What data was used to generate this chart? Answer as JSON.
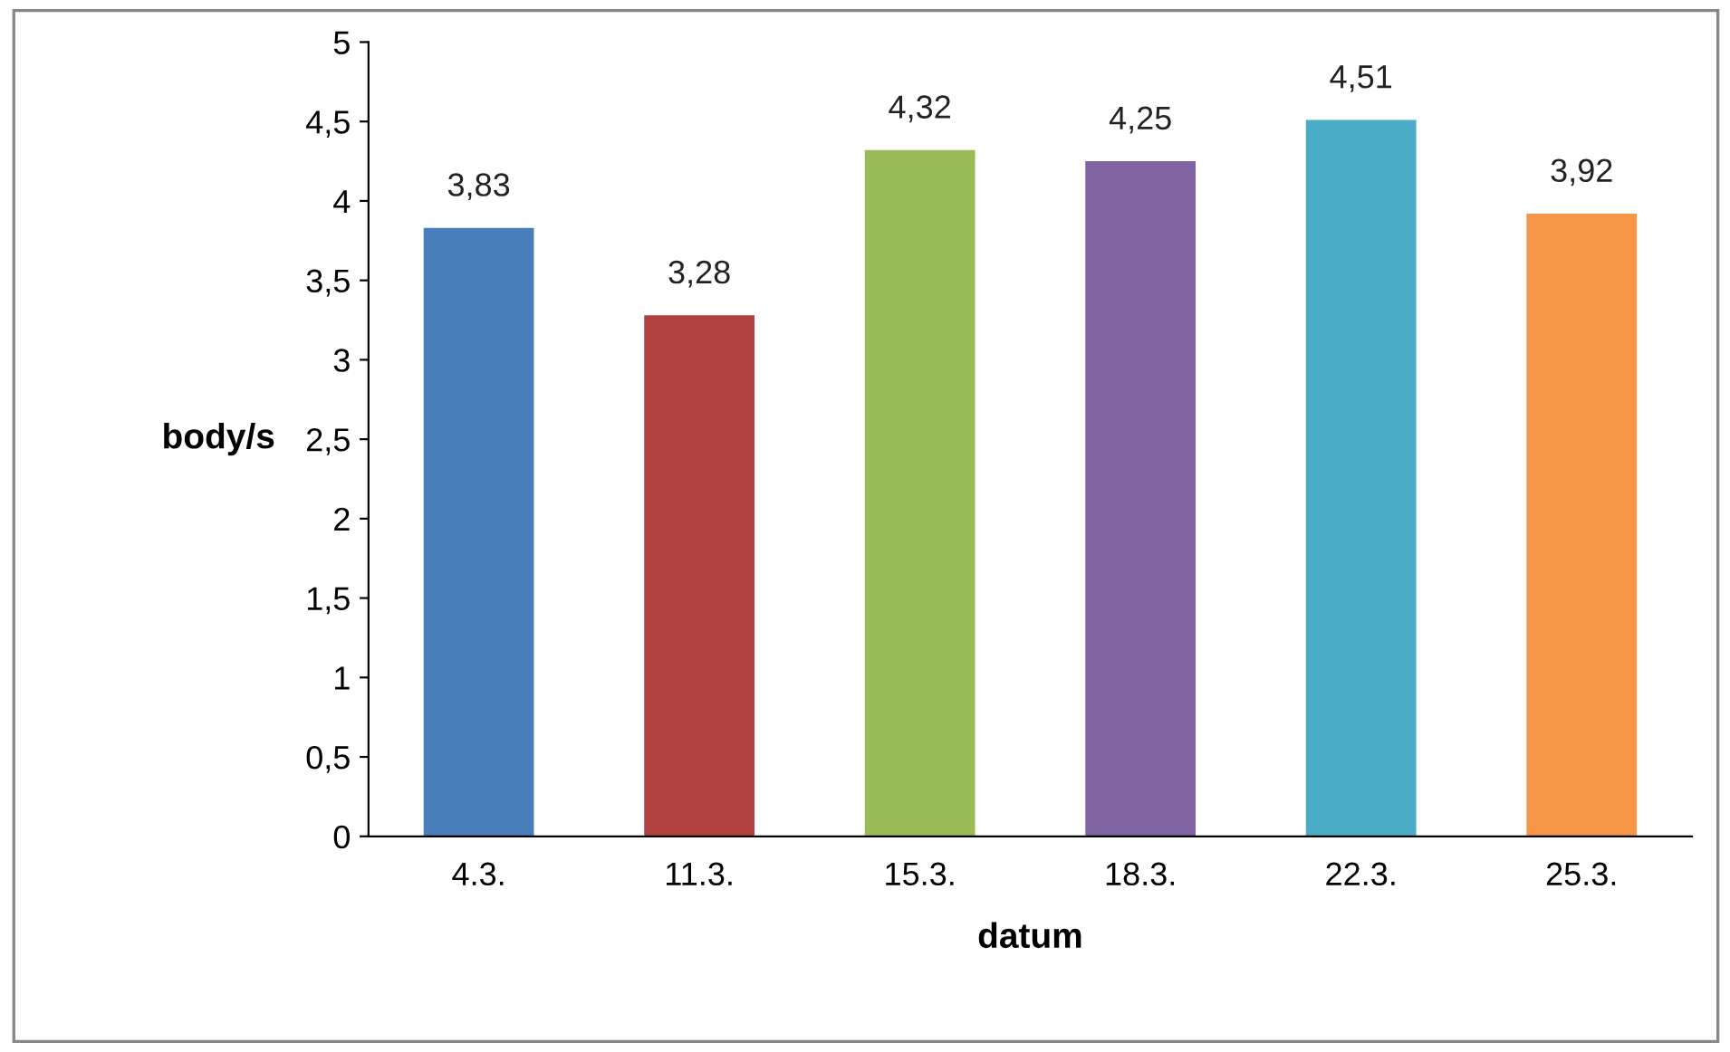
{
  "chart_data": {
    "type": "bar",
    "xlabel": "datum",
    "ylabel": "body/s",
    "categories": [
      "4.3.",
      "11.3.",
      "15.3.",
      "18.3.",
      "22.3.",
      "25.3."
    ],
    "values": [
      3.83,
      3.28,
      4.32,
      4.25,
      4.51,
      3.92
    ],
    "colors": [
      "#4a7ebb",
      "#b0413e",
      "#9bbb59",
      "#8064a2",
      "#4bacc6",
      "#f79646"
    ],
    "value_labels": [
      "3,83",
      "3,28",
      "4,32",
      "4,25",
      "4,51",
      "3,92"
    ],
    "ylim": [
      0,
      5
    ],
    "yticks": [
      0,
      {
        "value": 0.5,
        "label": "0,5"
      },
      1,
      {
        "value": 1.5,
        "label": "1,5"
      },
      2,
      {
        "value": 2.5,
        "label": "2,5"
      },
      3,
      {
        "value": 3.5,
        "label": "3,5"
      },
      4,
      {
        "value": 4.5,
        "label": "4,5"
      },
      5
    ],
    "grid": false,
    "legend": false
  }
}
